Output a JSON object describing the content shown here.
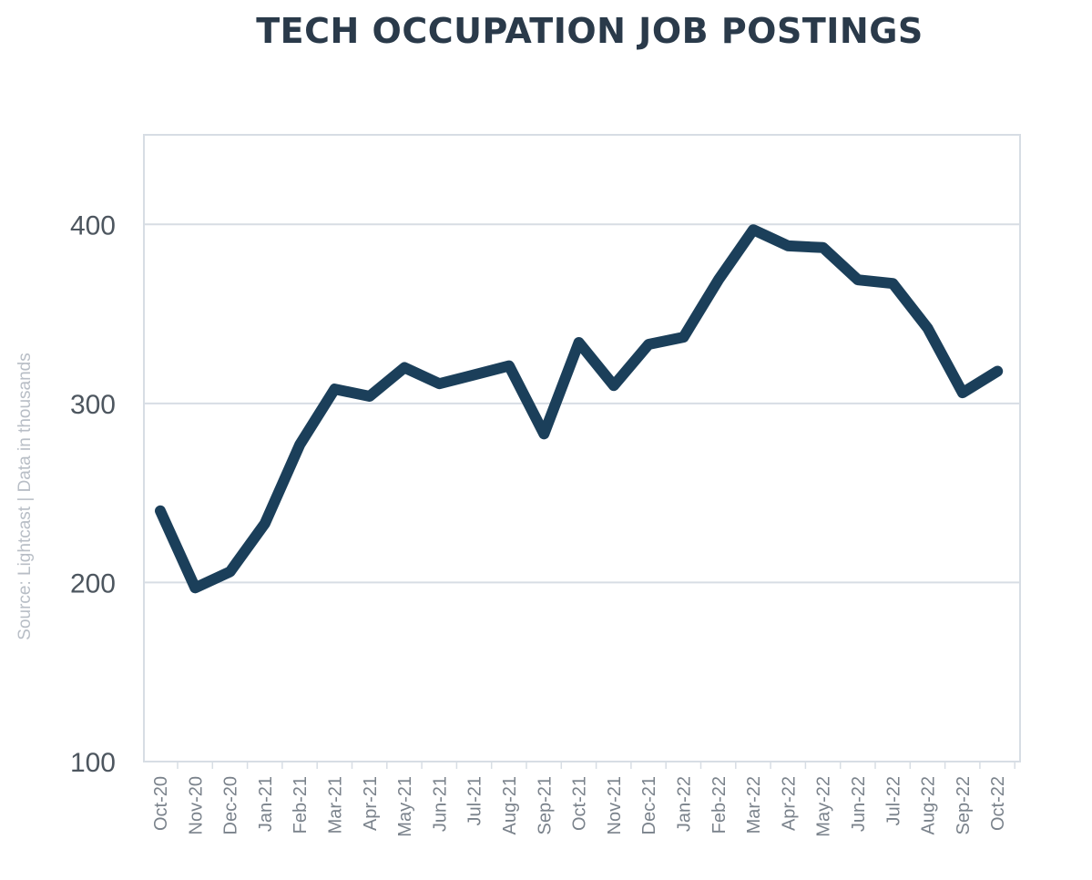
{
  "chart_data": {
    "type": "line",
    "title": "TECH OCCUPATION JOB POSTINGS",
    "note": "Source: Lightcast | Data in thousands",
    "xlabel": "",
    "ylabel": "",
    "categories": [
      "Oct-20",
      "Nov-20",
      "Dec-20",
      "Jan-21",
      "Feb-21",
      "Mar-21",
      "Apr-21",
      "May-21",
      "Jun-21",
      "Jul-21",
      "Aug-21",
      "Sep-21",
      "Oct-21",
      "Nov-21",
      "Dec-21",
      "Jan-22",
      "Feb-22",
      "Mar-22",
      "Apr-22",
      "May-22",
      "Jun-22",
      "Jul-22",
      "Aug-22",
      "Sep-22",
      "Oct-22"
    ],
    "series": [
      {
        "values": [
          240,
          197,
          206,
          233,
          277,
          308,
          304,
          320,
          311,
          316,
          321,
          283,
          334,
          310,
          333,
          337,
          369,
          397,
          388,
          387,
          369,
          367,
          342,
          306,
          318
        ]
      }
    ],
    "ylim": [
      100,
      450
    ],
    "yticks": [
      100,
      200,
      300,
      400
    ],
    "grid": true,
    "legend": "none",
    "colors": {
      "line": "#1b3f5a",
      "grid": "#d7dde4",
      "frame": "#d7dde4"
    }
  }
}
